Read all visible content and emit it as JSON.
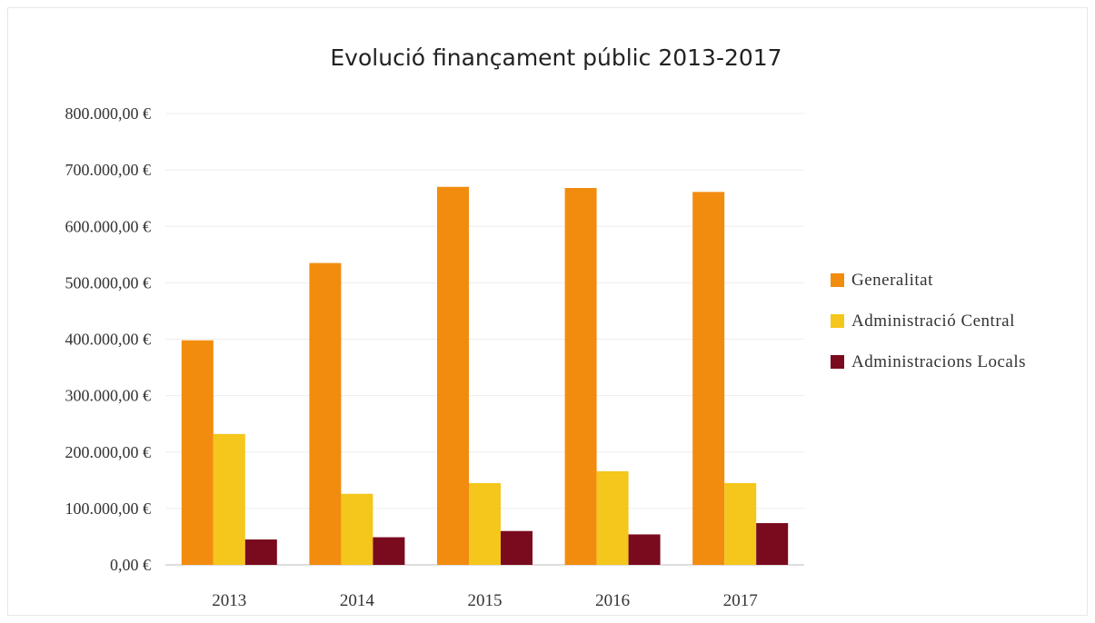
{
  "chart_data": {
    "type": "bar",
    "title": "Evolució finançament públic 2013-2017",
    "xlabel": "",
    "ylabel": "",
    "categories": [
      "2013",
      "2014",
      "2015",
      "2016",
      "2017"
    ],
    "series": [
      {
        "name": "Generalitat",
        "color": "#f28c0f",
        "values": [
          398000,
          535000,
          670000,
          668000,
          661000
        ]
      },
      {
        "name": "Administració Central",
        "color": "#f5c61b",
        "values": [
          232000,
          126000,
          145000,
          166000,
          145000
        ]
      },
      {
        "name": "Administracions Locals",
        "color": "#7a0a1e",
        "values": [
          45000,
          49000,
          60000,
          54000,
          74000
        ]
      }
    ],
    "ylim": [
      0,
      800000
    ],
    "yticks": [
      {
        "value": 0,
        "label": "0,00 €"
      },
      {
        "value": 100000,
        "label": "100.000,00 €"
      },
      {
        "value": 200000,
        "label": "200.000,00 €"
      },
      {
        "value": 300000,
        "label": "300.000,00 €"
      },
      {
        "value": 400000,
        "label": "400.000,00 €"
      },
      {
        "value": 500000,
        "label": "500.000,00 €"
      },
      {
        "value": 600000,
        "label": "600.000,00 €"
      },
      {
        "value": 700000,
        "label": "700.000,00 €"
      },
      {
        "value": 800000,
        "label": "800.000,00 €"
      }
    ],
    "grid": true,
    "legend_position": "right"
  }
}
